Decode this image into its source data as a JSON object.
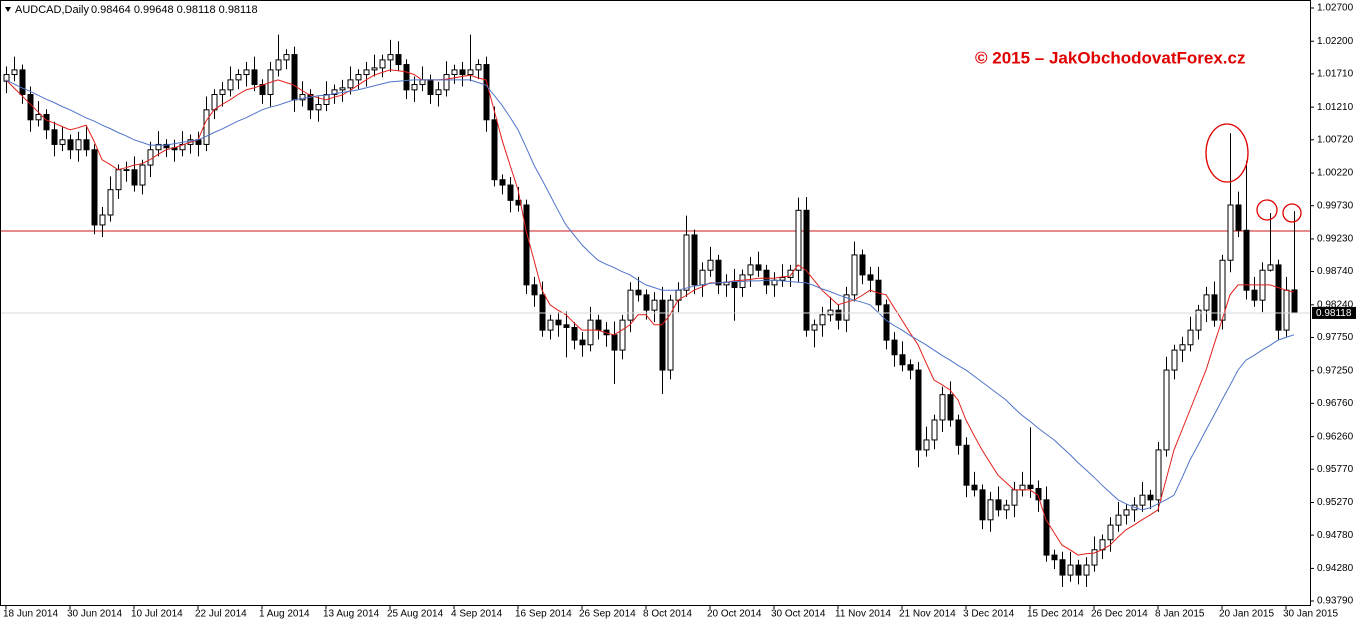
{
  "chart_data": {
    "type": "candlestick",
    "title": "AUDCAD,Daily",
    "subtitle": "0.98464 0.99648 0.98118 0.98118",
    "watermark": "© 2015 – JakObchodovatForex.cz",
    "up_color": "#ffffff",
    "down_color": "#000000",
    "ylim": [
      0.9373,
      1.0279
    ],
    "yticks": [
      {
        "value": 1.027,
        "label": "1.02700"
      },
      {
        "value": 1.022,
        "label": "1.02200"
      },
      {
        "value": 1.0171,
        "label": "1.01710"
      },
      {
        "value": 1.0121,
        "label": "1.01210"
      },
      {
        "value": 1.0072,
        "label": "1.00720"
      },
      {
        "value": 1.0022,
        "label": "1.00220"
      },
      {
        "value": 0.9973,
        "label": "0.99730"
      },
      {
        "value": 0.9923,
        "label": "0.99230"
      },
      {
        "value": 0.9874,
        "label": "0.98740"
      },
      {
        "value": 0.9824,
        "label": "0.98240"
      },
      {
        "value": 0.9775,
        "label": "0.97750"
      },
      {
        "value": 0.9725,
        "label": "0.97250"
      },
      {
        "value": 0.9676,
        "label": "0.96760"
      },
      {
        "value": 0.9626,
        "label": "0.96260"
      },
      {
        "value": 0.9577,
        "label": "0.95770"
      },
      {
        "value": 0.9527,
        "label": "0.95270"
      },
      {
        "value": 0.9478,
        "label": "0.94780"
      },
      {
        "value": 0.9428,
        "label": "0.94280"
      },
      {
        "value": 0.9379,
        "label": "0.93790"
      }
    ],
    "hlines": [
      {
        "value": 0.9935,
        "color": "#cc1a1a"
      }
    ],
    "last_price": {
      "value": 0.98118,
      "label": "0.98118"
    },
    "categories": [
      "18 Jun 2014",
      null,
      null,
      null,
      null,
      null,
      null,
      null,
      "30 Jun 2014",
      null,
      null,
      null,
      null,
      null,
      null,
      null,
      "10 Jul 2014",
      null,
      null,
      null,
      null,
      null,
      null,
      null,
      "22 Jul 2014",
      null,
      null,
      null,
      null,
      null,
      null,
      null,
      "1 Aug 2014",
      null,
      null,
      null,
      null,
      null,
      null,
      null,
      "13 Aug 2014",
      null,
      null,
      null,
      null,
      null,
      null,
      null,
      "25 Aug 2014",
      null,
      null,
      null,
      null,
      null,
      null,
      null,
      "4 Sep 2014",
      null,
      null,
      null,
      null,
      null,
      null,
      null,
      "16 Sep 2014",
      null,
      null,
      null,
      null,
      null,
      null,
      null,
      "26 Sep 2014",
      null,
      null,
      null,
      null,
      null,
      null,
      null,
      "8 Oct 2014",
      null,
      null,
      null,
      null,
      null,
      null,
      null,
      "20 Oct 2014",
      null,
      null,
      null,
      null,
      null,
      null,
      null,
      "30 Oct 2014",
      null,
      null,
      null,
      null,
      null,
      null,
      null,
      "11 Nov 2014",
      null,
      null,
      null,
      null,
      null,
      null,
      null,
      "21 Nov 2014",
      null,
      null,
      null,
      null,
      null,
      null,
      null,
      "3 Dec 2014",
      null,
      null,
      null,
      null,
      null,
      null,
      null,
      "15 Dec 2014",
      null,
      null,
      null,
      null,
      null,
      null,
      null,
      "26 Dec 2014",
      null,
      null,
      null,
      null,
      null,
      null,
      null,
      "8 Jan 2015",
      null,
      null,
      null,
      null,
      null,
      null,
      null,
      "20 Jan 2015",
      null,
      null,
      null,
      null,
      null,
      null,
      null,
      "30 Jan 2015",
      null
    ],
    "open": [
      1.016,
      1.017,
      1.0177,
      1.014,
      1.0102,
      1.011,
      1.0087,
      1.0065,
      1.0072,
      1.0057,
      1.0072,
      1.0057,
      0.9944,
      0.9959,
      0.9997,
      1.0027,
      1.0027,
      1.0004,
      1.0034,
      1.0057,
      1.0065,
      1.006,
      1.0057,
      1.0065,
      1.0072,
      1.0065,
      1.0117,
      1.014,
      1.0147,
      1.0162,
      1.017,
      1.0177,
      1.0155,
      1.014,
      1.0177,
      1.0192,
      1.02,
      1.0132,
      1.014,
      1.0117,
      1.0125,
      1.014,
      1.0147,
      1.015,
      1.0162,
      1.017,
      1.0177,
      1.018,
      1.0192,
      1.02,
      1.0185,
      1.0147,
      1.0155,
      1.0162,
      1.014,
      1.0147,
      1.017,
      1.0177,
      1.017,
      1.0177,
      1.0185,
      1.0102,
      1.0012,
      1.0004,
      0.9981,
      0.9974,
      0.9854,
      0.9839,
      0.9786,
      0.9801,
      0.9794,
      0.979,
      0.9771,
      0.9764,
      0.9801,
      0.9786,
      0.9779,
      0.9756,
      0.9801,
      0.9846,
      0.9839,
      0.9816,
      0.9831,
      0.9726,
      0.9831,
      0.9846,
      0.9929,
      0.9854,
      0.9876,
      0.9891,
      0.9854,
      0.9858,
      0.985,
      0.9869,
      0.9884,
      0.9876,
      0.9854,
      0.9861,
      0.9865,
      0.9876,
      0.9966,
      0.9786,
      0.9794,
      0.9809,
      0.9816,
      0.9801,
      0.9839,
      0.9899,
      0.9869,
      0.9861,
      0.9824,
      0.9771,
      0.9749,
      0.9734,
      0.9726,
      0.9606,
      0.9621,
      0.9651,
      0.9689,
      0.9651,
      0.9613,
      0.9553,
      0.9546,
      0.9501,
      0.9531,
      0.9516,
      0.9523,
      0.9546,
      0.9553,
      0.9548,
      0.9531,
      0.9448,
      0.9441,
      0.9418,
      0.9433,
      0.9418,
      0.9433,
      0.9456,
      0.9471,
      0.9493,
      0.9508,
      0.9516,
      0.9523,
      0.9538,
      0.9531,
      0.9606,
      0.9726,
      0.9756,
      0.9764,
      0.9786,
      0.9816,
      0.9839,
      0.9801,
      0.9891,
      0.9974,
      0.9936,
      0.9846,
      0.9831,
      0.9876,
      0.9884,
      0.9786,
      0.98464
    ],
    "high": [
      1.0182,
      1.0197,
      1.0185,
      1.0152,
      1.013,
      1.0118,
      1.0099,
      1.0092,
      1.008,
      1.0084,
      1.0092,
      1.0065,
      0.9971,
      1.0017,
      1.0035,
      1.0039,
      1.0047,
      1.0042,
      1.0069,
      1.0085,
      1.0073,
      1.0072,
      1.0085,
      1.008,
      1.0084,
      1.0137,
      1.0148,
      1.0159,
      1.0182,
      1.0178,
      1.0189,
      1.0197,
      1.0163,
      1.0189,
      1.023,
      1.0208,
      1.0212,
      1.016,
      1.0148,
      1.0137,
      1.016,
      1.0155,
      1.0162,
      1.0182,
      1.0178,
      1.0189,
      1.02,
      1.02,
      1.0222,
      1.022,
      1.0193,
      1.0167,
      1.0182,
      1.017,
      1.0159,
      1.019,
      1.0185,
      1.0189,
      1.023,
      1.0193,
      1.0197,
      1.0122,
      1.002,
      1.0016,
      1.0001,
      0.9982,
      0.9866,
      0.9859,
      0.9809,
      0.9813,
      0.9814,
      0.9798,
      0.9783,
      0.9821,
      0.9809,
      0.9798,
      0.9799,
      0.9809,
      0.9858,
      0.9866,
      0.9847,
      0.9843,
      0.9851,
      0.9839,
      0.9858,
      0.9958,
      0.9937,
      0.9888,
      0.9911,
      0.9899,
      0.987,
      0.9878,
      0.9877,
      0.9896,
      0.9904,
      0.9884,
      0.9873,
      0.9885,
      0.9884,
      0.9985,
      0.9986,
      0.9802,
      0.9821,
      0.9836,
      0.9824,
      0.9851,
      0.9919,
      0.9907,
      0.9881,
      0.9881,
      0.9832,
      0.9783,
      0.9769,
      0.9742,
      0.9738,
      0.9641,
      0.9659,
      0.9701,
      0.9709,
      0.9659,
      0.9625,
      0.9573,
      0.9554,
      0.9543,
      0.9551,
      0.9531,
      0.9558,
      0.9573,
      0.964,
      0.956,
      0.9551,
      0.9456,
      0.9453,
      0.9453,
      0.9441,
      0.9445,
      0.9476,
      0.9479,
      0.9505,
      0.9528,
      0.9524,
      0.9535,
      0.9558,
      0.9546,
      0.9618,
      0.9746,
      0.9764,
      0.9776,
      0.9806,
      0.9824,
      0.9851,
      0.9859,
      0.9899,
      1.0082,
      0.9994,
      1.004,
      0.9866,
      0.9888,
      0.9962,
      0.9892,
      0.9866,
      0.99648
    ],
    "low": [
      1.0142,
      1.016,
      1.0126,
      1.0084,
      1.0092,
      1.0073,
      1.0047,
      1.0055,
      1.0043,
      1.0039,
      1.0047,
      0.993,
      0.9926,
      0.9949,
      0.9983,
      1.0009,
      0.9994,
      0.999,
      1.0016,
      1.0047,
      1.0046,
      1.0039,
      1.0047,
      1.0051,
      1.0047,
      1.0055,
      1.0103,
      1.0122,
      1.0137,
      1.0148,
      1.0152,
      1.0145,
      1.0126,
      1.0122,
      1.0167,
      1.0178,
      1.0114,
      1.0122,
      1.0103,
      1.0099,
      1.0115,
      1.0126,
      1.0129,
      1.014,
      1.0148,
      1.0152,
      1.0167,
      1.0166,
      1.0174,
      1.0175,
      1.0133,
      1.0129,
      1.0145,
      1.0126,
      1.0122,
      1.0137,
      1.0156,
      1.0152,
      1.016,
      1.0163,
      1.0084,
      1.0002,
      0.999,
      0.9963,
      0.9964,
      0.984,
      0.9821,
      0.9776,
      0.9772,
      0.9776,
      0.9745,
      0.9757,
      0.9746,
      0.9754,
      0.9772,
      0.9761,
      0.9705,
      0.9742,
      0.9783,
      0.9829,
      0.9802,
      0.9798,
      0.969,
      0.9712,
      0.9813,
      0.9836,
      0.984,
      0.9836,
      0.9866,
      0.984,
      0.9836,
      0.98,
      0.9836,
      0.9851,
      0.9866,
      0.984,
      0.9836,
      0.9851,
      0.9851,
      0.9858,
      0.9776,
      0.976,
      0.9776,
      0.9799,
      0.9787,
      0.9783,
      0.9829,
      0.9855,
      0.9843,
      0.9814,
      0.9757,
      0.9731,
      0.9724,
      0.9712,
      0.958,
      0.9596,
      0.9607,
      0.9633,
      0.9641,
      0.9599,
      0.9535,
      0.9536,
      0.9487,
      0.9483,
      0.9506,
      0.9502,
      0.9505,
      0.9536,
      0.9534,
      0.9513,
      0.9438,
      0.9427,
      0.94,
      0.9408,
      0.9404,
      0.94,
      0.9423,
      0.9442,
      0.9453,
      0.9483,
      0.9494,
      0.9498,
      0.9513,
      0.9517,
      0.9513,
      0.9596,
      0.9712,
      0.9738,
      0.9754,
      0.9772,
      0.9798,
      0.9791,
      0.9787,
      0.9873,
      0.9926,
      0.9832,
      0.9821,
      0.9813,
      0.9874,
      0.9772,
      0.9776,
      0.98118
    ],
    "close": [
      1.017,
      1.0177,
      1.014,
      1.0102,
      1.011,
      1.0087,
      1.0065,
      1.0072,
      1.0057,
      1.0072,
      1.0057,
      0.9944,
      0.9959,
      0.9997,
      1.0027,
      1.0027,
      1.0004,
      1.0034,
      1.0057,
      1.0065,
      1.006,
      1.0057,
      1.0065,
      1.0072,
      1.0065,
      1.0117,
      1.014,
      1.0147,
      1.0162,
      1.017,
      1.0177,
      1.0155,
      1.014,
      1.0177,
      1.0192,
      1.02,
      1.0132,
      1.014,
      1.0117,
      1.0125,
      1.014,
      1.0147,
      1.015,
      1.0162,
      1.017,
      1.0177,
      1.018,
      1.0192,
      1.02,
      1.0185,
      1.0147,
      1.0155,
      1.0162,
      1.014,
      1.0147,
      1.017,
      1.0177,
      1.017,
      1.0177,
      1.0185,
      1.0102,
      1.0012,
      1.0004,
      0.9981,
      0.9974,
      0.9854,
      0.9839,
      0.9786,
      0.9801,
      0.9794,
      0.979,
      0.9771,
      0.9764,
      0.9801,
      0.9786,
      0.9779,
      0.9756,
      0.9801,
      0.9846,
      0.9839,
      0.9816,
      0.9831,
      0.9726,
      0.9831,
      0.9846,
      0.9929,
      0.9854,
      0.9876,
      0.9891,
      0.9854,
      0.9858,
      0.985,
      0.9869,
      0.9884,
      0.9876,
      0.9854,
      0.9861,
      0.9865,
      0.9876,
      0.9966,
      0.9786,
      0.9794,
      0.9809,
      0.9816,
      0.9801,
      0.9839,
      0.9899,
      0.9869,
      0.9861,
      0.9824,
      0.9771,
      0.9749,
      0.9734,
      0.9726,
      0.9606,
      0.9621,
      0.9651,
      0.9689,
      0.9651,
      0.9613,
      0.9553,
      0.9546,
      0.9501,
      0.9531,
      0.9516,
      0.9523,
      0.9546,
      0.9553,
      0.9548,
      0.9531,
      0.9448,
      0.9441,
      0.9418,
      0.9433,
      0.9418,
      0.9433,
      0.9456,
      0.9471,
      0.9493,
      0.9508,
      0.9516,
      0.9523,
      0.9538,
      0.9531,
      0.9606,
      0.9726,
      0.9756,
      0.9764,
      0.9786,
      0.9816,
      0.9839,
      0.9801,
      0.9891,
      0.9974,
      0.9936,
      0.9846,
      0.9831,
      0.9876,
      0.9884,
      0.9786,
      0.9846,
      0.98118
    ],
    "moving_averages": [
      {
        "color": "#e3201b",
        "values": [
          1.0162,
          1.015,
          1.0138,
          1.0126,
          1.0114,
          1.0102,
          1.0097,
          1.0092,
          1.0087,
          1.009,
          1.0094,
          1.007,
          1.0042,
          1.0035,
          1.0027,
          1.003,
          1.0034,
          1.0036,
          1.0042,
          1.005,
          1.0057,
          1.006,
          1.0064,
          1.0068,
          1.0072,
          1.01,
          1.0117,
          1.0125,
          1.0132,
          1.014,
          1.0147,
          1.015,
          1.0154,
          1.0158,
          1.0162,
          1.0158,
          1.0154,
          1.0146,
          1.0139,
          1.0135,
          1.0132,
          1.0136,
          1.0139,
          1.0146,
          1.0154,
          1.0162,
          1.0169,
          1.0173,
          1.0177,
          1.0176,
          1.0174,
          1.017,
          1.0162,
          1.0162,
          1.0162,
          1.0163,
          1.0165,
          1.0167,
          1.0169,
          1.0165,
          1.0162,
          1.0117,
          1.0072,
          1.0034,
          0.9997,
          0.9936,
          0.9891,
          0.9846,
          0.9824,
          0.9816,
          0.9809,
          0.9797,
          0.9786,
          0.9786,
          0.9786,
          0.9782,
          0.9779,
          0.9786,
          0.9794,
          0.9809,
          0.9809,
          0.9794,
          0.9794,
          0.9809,
          0.9831,
          0.9838,
          0.9846,
          0.9851,
          0.9857,
          0.9857,
          0.9858,
          0.986,
          0.9861,
          0.9862,
          0.9864,
          0.9864,
          0.9864,
          0.9866,
          0.9867,
          0.9884,
          0.9876,
          0.9861,
          0.9846,
          0.9835,
          0.9824,
          0.9828,
          0.9831,
          0.9838,
          0.9846,
          0.9842,
          0.9839,
          0.982,
          0.9801,
          0.9782,
          0.9764,
          0.9737,
          0.9711,
          0.9704,
          0.9696,
          0.9681,
          0.9651,
          0.9628,
          0.9606,
          0.9587,
          0.9568,
          0.9557,
          0.9546,
          0.9546,
          0.9546,
          0.9538,
          0.9501,
          0.9482,
          0.9463,
          0.9456,
          0.9448,
          0.945,
          0.9451,
          0.9456,
          0.9463,
          0.9475,
          0.9486,
          0.9493,
          0.9501,
          0.9508,
          0.9516,
          0.9561,
          0.9606,
          0.9636,
          0.9666,
          0.9696,
          0.9726,
          0.9764,
          0.9801,
          0.9839,
          0.9854,
          0.9854,
          0.9854,
          0.9854,
          0.9854,
          0.985,
          0.9846,
          0.9843
        ]
      },
      {
        "color": "#4f74c9",
        "values": [
          1.0162,
          1.0156,
          1.015,
          1.0145,
          1.0139,
          1.0133,
          1.0128,
          1.0122,
          1.0117,
          1.0111,
          1.0105,
          1.01,
          1.0094,
          1.0089,
          1.0083,
          1.0078,
          1.0072,
          1.0068,
          1.0064,
          1.0064,
          1.0064,
          1.0066,
          1.0068,
          1.007,
          1.0072,
          1.0077,
          1.0083,
          1.0088,
          1.0094,
          1.01,
          1.0105,
          1.0111,
          1.0117,
          1.0121,
          1.0124,
          1.0128,
          1.0132,
          1.0134,
          1.0136,
          1.0138,
          1.0139,
          1.0141,
          1.0143,
          1.0145,
          1.0147,
          1.015,
          1.0153,
          1.0156,
          1.0159,
          1.016,
          1.0161,
          1.0162,
          1.0162,
          1.0162,
          1.0162,
          1.0162,
          1.0162,
          1.0162,
          1.0162,
          1.0158,
          1.0154,
          1.0139,
          1.0124,
          1.0106,
          1.0087,
          1.0061,
          1.0034,
          1.0012,
          0.9989,
          0.9966,
          0.9944,
          0.9929,
          0.9914,
          0.9902,
          0.9891,
          0.9885,
          0.988,
          0.9874,
          0.9869,
          0.9861,
          0.9854,
          0.985,
          0.9846,
          0.9846,
          0.9846,
          0.9849,
          0.9852,
          0.9854,
          0.9856,
          0.9857,
          0.9858,
          0.9859,
          0.9859,
          0.986,
          0.986,
          0.9861,
          0.9861,
          0.986,
          0.9859,
          0.9858,
          0.9857,
          0.9853,
          0.9848,
          0.9844,
          0.9839,
          0.9835,
          0.9831,
          0.9828,
          0.9824,
          0.9813,
          0.9801,
          0.9793,
          0.9786,
          0.9778,
          0.9771,
          0.9764,
          0.9756,
          0.9748,
          0.9741,
          0.9733,
          0.9726,
          0.9717,
          0.9708,
          0.9699,
          0.969,
          0.9681,
          0.9669,
          0.9658,
          0.9649,
          0.9639,
          0.963,
          0.9621,
          0.961,
          0.9599,
          0.9587,
          0.9576,
          0.9565,
          0.9553,
          0.9542,
          0.9531,
          0.9525,
          0.952,
          0.9516,
          0.9519,
          0.9525,
          0.9531,
          0.9538,
          0.9564,
          0.9591,
          0.9613,
          0.9636,
          0.9658,
          0.9681,
          0.9703,
          0.9726,
          0.9741,
          0.9748,
          0.9756,
          0.9763,
          0.9771,
          0.9775,
          0.9779
        ]
      }
    ]
  }
}
